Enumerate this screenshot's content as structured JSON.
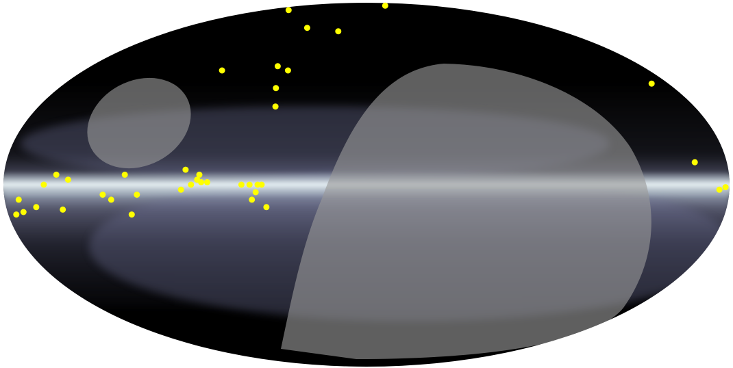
{
  "map": {
    "projection": "mollweide",
    "background_color": "#000000",
    "galactic_plane_color": "#dcf0f4",
    "diffuse_emission_color": "#8a8db0",
    "exclusion_region_color": "#9a9a9a",
    "source_marker_color": "#ffff00",
    "exclusion_regions": [
      {
        "name": "small-exclusion-region",
        "shape": "ellipse"
      },
      {
        "name": "large-exclusion-region",
        "shape": "curved-cap"
      }
    ],
    "sources": [
      {
        "lon": 137,
        "lat": 82
      },
      {
        "lon": -52,
        "lat": 86
      },
      {
        "lon": 58,
        "lat": 70
      },
      {
        "lon": 26,
        "lat": 68
      },
      {
        "lon": -170,
        "lat": 42
      },
      {
        "lon": 92,
        "lat": 48
      },
      {
        "lon": 58,
        "lat": 50
      },
      {
        "lon": 50,
        "lat": 48
      },
      {
        "lon": 53,
        "lat": 40
      },
      {
        "lon": 50,
        "lat": 32
      },
      {
        "lon": -164,
        "lat": 9
      },
      {
        "lon": -175,
        "lat": -2
      },
      {
        "lon": -178,
        "lat": -1
      },
      {
        "lon": 154,
        "lat": 4
      },
      {
        "lon": 148,
        "lat": 2
      },
      {
        "lon": 90,
        "lat": 6
      },
      {
        "lon": 83,
        "lat": 4
      },
      {
        "lon": 84,
        "lat": 2
      },
      {
        "lon": 82,
        "lat": 1
      },
      {
        "lon": 87,
        "lat": 0
      },
      {
        "lon": 79,
        "lat": 1
      },
      {
        "lon": 92,
        "lat": -2
      },
      {
        "lon": 62,
        "lat": 0
      },
      {
        "lon": 58,
        "lat": 0
      },
      {
        "lon": 54,
        "lat": 0
      },
      {
        "lon": 52,
        "lat": 0
      },
      {
        "lon": 55,
        "lat": -3
      },
      {
        "lon": 57,
        "lat": -6
      },
      {
        "lon": 50,
        "lat": -9
      },
      {
        "lon": 160,
        "lat": 0
      },
      {
        "lon": 120,
        "lat": 4
      },
      {
        "lon": 173,
        "lat": -6
      },
      {
        "lon": 127,
        "lat": -6
      },
      {
        "lon": 131,
        "lat": -4
      },
      {
        "lon": 114,
        "lat": -4
      },
      {
        "lon": 165,
        "lat": -9
      },
      {
        "lon": 152,
        "lat": -10
      },
      {
        "lon": 172,
        "lat": -11
      },
      {
        "lon": 176,
        "lat": -12
      },
      {
        "lon": 118,
        "lat": -12
      }
    ]
  }
}
